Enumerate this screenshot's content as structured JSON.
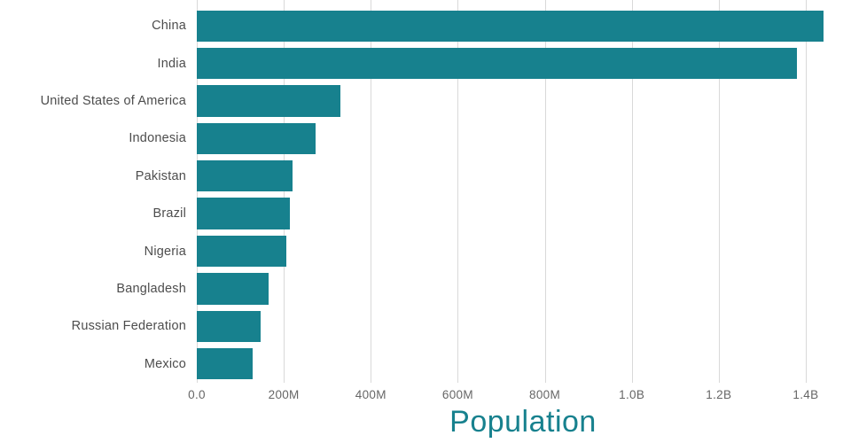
{
  "chart_data": {
    "type": "bar",
    "orientation": "horizontal",
    "title": "",
    "xlabel": "Population",
    "ylabel": "",
    "categories": [
      "China",
      "India",
      "United States of America",
      "Indonesia",
      "Pakistan",
      "Brazil",
      "Nigeria",
      "Bangladesh",
      "Russian Federation",
      "Mexico"
    ],
    "values": [
      1440000000,
      1380000000,
      331000000,
      274000000,
      221000000,
      213000000,
      206000000,
      165000000,
      146000000,
      129000000
    ],
    "xlim": [
      0,
      1500000000
    ],
    "xtick_values": [
      0,
      200000000,
      400000000,
      600000000,
      800000000,
      1000000000,
      1200000000,
      1400000000
    ],
    "xtick_labels": [
      "0.0",
      "200M",
      "400M",
      "600M",
      "800M",
      "1.0B",
      "1.2B",
      "1.4B"
    ],
    "bar_color": "#17818e",
    "grid": "vertical",
    "gridline_color": "#d9d9d9",
    "legend": "none",
    "background": "#ffffff"
  }
}
